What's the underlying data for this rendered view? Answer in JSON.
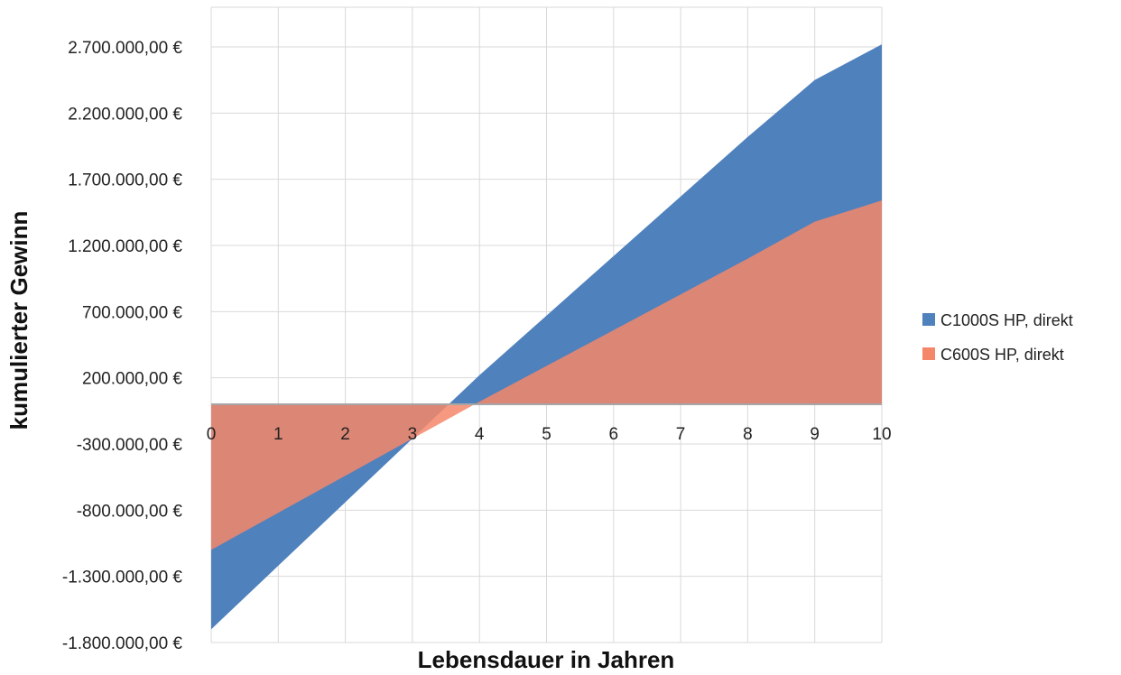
{
  "chart_data": {
    "type": "area",
    "title": "",
    "xlabel": "Lebensdauer in Jahren",
    "ylabel": "kumulierter  Gewinn",
    "x": [
      0,
      1,
      2,
      3,
      4,
      5,
      6,
      7,
      8,
      9,
      10
    ],
    "x_tick_labels": [
      "0",
      "1",
      "2",
      "3",
      "4",
      "5",
      "6",
      "7",
      "8",
      "9",
      "10"
    ],
    "ylim": [
      -1800000,
      3000000
    ],
    "y_ticks": [
      -1800000,
      -1300000,
      -800000,
      -300000,
      200000,
      700000,
      1200000,
      1700000,
      2200000,
      2700000
    ],
    "y_tick_labels": [
      "-1.800.000,00 €",
      "-1.300.000,00 €",
      "-800.000,00 €",
      "-300.000,00 €",
      "200.000,00 €",
      "700.000,00 €",
      "1.200.000,00 €",
      "1.700.000,00 €",
      "2.200.000,00 €",
      "2.700.000,00 €"
    ],
    "grid": true,
    "legend_position": "right",
    "series": [
      {
        "name": "C1000S HP, direkt",
        "color": "#4f81bd",
        "values": [
          -1700000,
          -1220000,
          -740000,
          -260000,
          220000,
          670000,
          1120000,
          1570000,
          2020000,
          2450000,
          2720000
        ]
      },
      {
        "name": "C600S HP, direkt",
        "color": "#f4876a",
        "values": [
          -1100000,
          -820000,
          -540000,
          -260000,
          20000,
          290000,
          560000,
          830000,
          1100000,
          1380000,
          1540000
        ]
      }
    ]
  }
}
